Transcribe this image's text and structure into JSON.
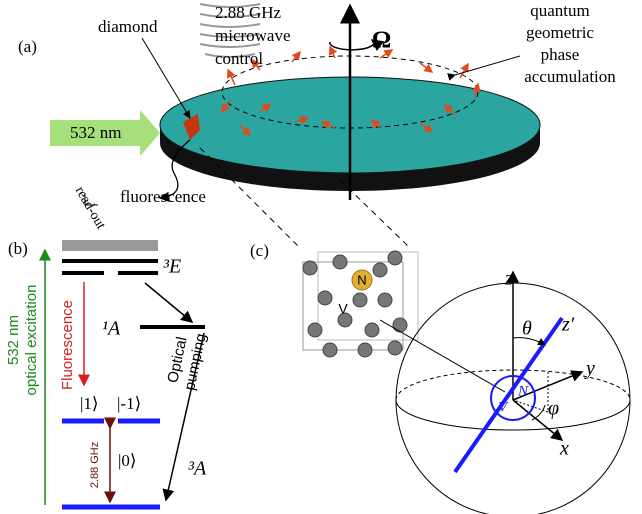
{
  "panel_a": {
    "label": "(a)",
    "microwave": [
      "2.88 GHz",
      "microwave",
      "control"
    ],
    "diamond": "diamond",
    "rotation": "Ω",
    "phase_note": [
      "quantum",
      "geometric",
      "phase",
      "accumulation"
    ],
    "laser": "532 nm",
    "fluorescence": "fluorescence",
    "readout": "read-out"
  },
  "panel_b": {
    "label": "(b)",
    "level_3E": "³E",
    "level_1A": "¹A",
    "level_3A": "³A",
    "fluorescence": "Fluorescence",
    "pumping": [
      "Optical",
      "pumping"
    ],
    "state_plus1": "|1⟩",
    "state_minus1": "|-1⟩",
    "state_0": "|0⟩",
    "splitting": "2.88 GHz",
    "excitation": [
      "532 nm",
      "optical excitation"
    ]
  },
  "panel_c": {
    "label": "(c)",
    "atom_n": "N",
    "atom_v": "V",
    "axis_z": "z",
    "axis_zp": "z′",
    "angle_theta": "θ",
    "axis_y": "y",
    "angle_phi": "φ",
    "axis_x": "x",
    "nv_n": "N",
    "nv_v": "V"
  }
}
